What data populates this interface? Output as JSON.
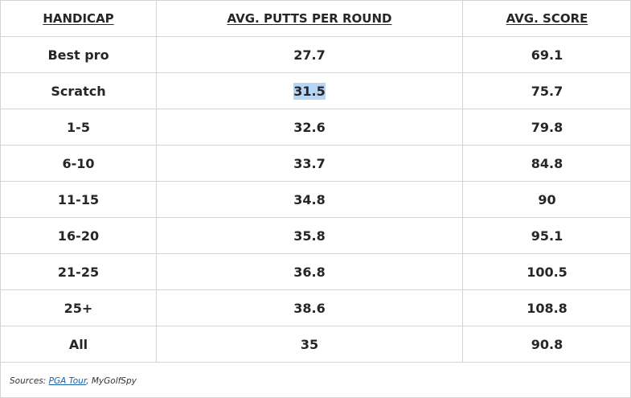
{
  "table": {
    "headers": [
      "HANDICAP",
      "AVG. PUTTS PER ROUND",
      "AVG. SCORE"
    ],
    "rows": [
      {
        "handicap": "Best pro",
        "putts": "27.7",
        "score": "69.1"
      },
      {
        "handicap": "Scratch",
        "putts": "31.5",
        "score": "75.7",
        "putts_selected": true
      },
      {
        "handicap": "1-5",
        "putts": "32.6",
        "score": "79.8"
      },
      {
        "handicap": "6-10",
        "putts": "33.7",
        "score": "84.8"
      },
      {
        "handicap": "11-15",
        "putts": "34.8",
        "score": "90"
      },
      {
        "handicap": "16-20",
        "putts": "35.8",
        "score": "95.1"
      },
      {
        "handicap": "21-25",
        "putts": "36.8",
        "score": "100.5"
      },
      {
        "handicap": "25+",
        "putts": "38.6",
        "score": "108.8"
      },
      {
        "handicap": "All",
        "putts": "35",
        "score": "90.8"
      }
    ]
  },
  "sources": {
    "prefix": "Sources: ",
    "link_text": "PGA Tour",
    "suffix": ", MyGolfSpy"
  },
  "colors": {
    "selection_highlight": "#b5d5f7",
    "link": "#1a5fa8",
    "border": "#d4d4d4"
  }
}
